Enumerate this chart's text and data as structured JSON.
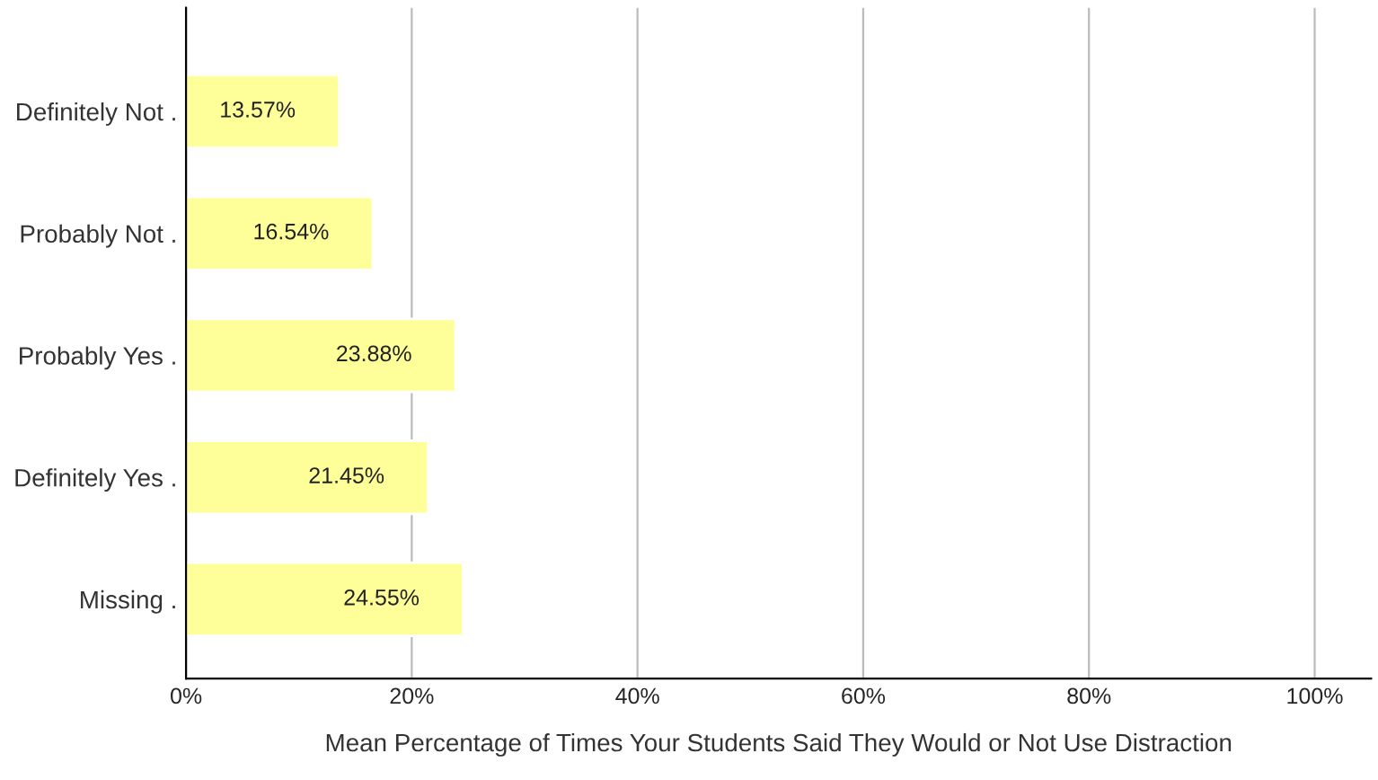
{
  "chart_data": {
    "type": "bar",
    "orientation": "horizontal",
    "xlabel": "Mean Percentage of Times Your Students Said They Would or Not Use Distraction",
    "categories": [
      "Definitely Not .",
      "Probably Not .",
      "Probably Yes .",
      "Definitely Yes .",
      "Missing ."
    ],
    "values": [
      13.57,
      16.54,
      23.88,
      21.45,
      24.55
    ],
    "value_labels": [
      "13.57%",
      "16.54%",
      "23.88%",
      "21.45%",
      "24.55%"
    ],
    "color": "#ffff99",
    "xlim": [
      0,
      105
    ],
    "xticks": [
      {
        "value": 0,
        "label": "0%"
      },
      {
        "value": 20,
        "label": "20%"
      },
      {
        "value": 40,
        "label": "40%"
      },
      {
        "value": 60,
        "label": "60%"
      },
      {
        "value": 80,
        "label": "80%"
      },
      {
        "value": 100,
        "label": "100%"
      }
    ],
    "grid": "x",
    "legend": false
  }
}
